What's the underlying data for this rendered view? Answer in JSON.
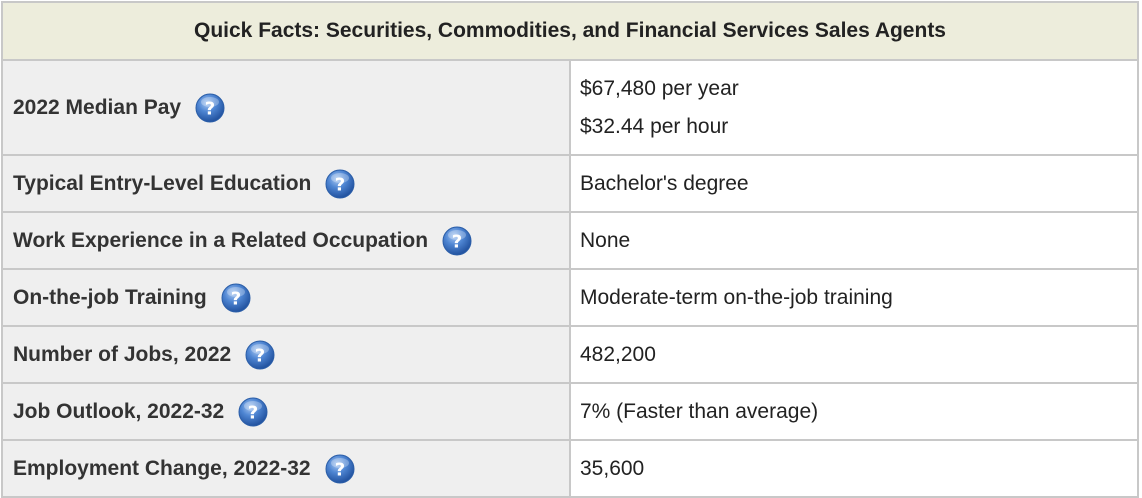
{
  "title": "Quick Facts: Securities, Commodities, and Financial Services Sales Agents",
  "help_icon": "question-mark-help-icon",
  "colors": {
    "header_bg": "#ededdc",
    "label_bg": "#efefef",
    "border": "#c8c8c8",
    "icon_blue": "#3f76c7"
  },
  "rows": [
    {
      "label": "2022 Median Pay",
      "values": [
        "$67,480 per year",
        "$32.44 per hour"
      ]
    },
    {
      "label": "Typical Entry-Level Education",
      "value": "Bachelor's degree"
    },
    {
      "label": "Work Experience in a Related Occupation",
      "value": "None"
    },
    {
      "label": "On-the-job Training",
      "value": "Moderate-term on-the-job training"
    },
    {
      "label": "Number of Jobs, 2022",
      "value": "482,200"
    },
    {
      "label": "Job Outlook, 2022-32",
      "value": "7% (Faster than average)"
    },
    {
      "label": "Employment Change, 2022-32",
      "value": "35,600"
    }
  ]
}
